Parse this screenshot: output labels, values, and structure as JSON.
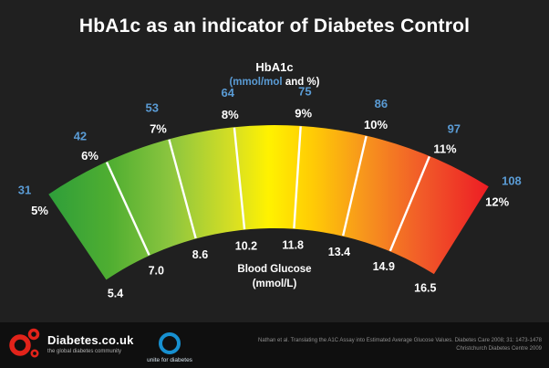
{
  "title": "HbA1c as an indicator of Diabetes Control",
  "gauge": {
    "heading": "HbA1c",
    "sub_blue": "(mmol/mol",
    "sub_white": "and %)",
    "center_line1": "Blood Glucose",
    "center_line2": "(mmol/L)"
  },
  "chart_data": {
    "type": "gauge",
    "title": "HbA1c as an indicator of Diabetes Control",
    "outer_scale_label": "HbA1c (mmol/mol and %)",
    "inner_scale_label": "Blood Glucose (mmol/L)",
    "ticks": [
      {
        "mmol_mol": "31",
        "percent": "5%",
        "glucose": "5.4"
      },
      {
        "mmol_mol": "42",
        "percent": "6%",
        "glucose": "7.0"
      },
      {
        "mmol_mol": "53",
        "percent": "7%",
        "glucose": "8.6"
      },
      {
        "mmol_mol": "64",
        "percent": "8%",
        "glucose": "10.2"
      },
      {
        "mmol_mol": "75",
        "percent": "9%",
        "glucose": "11.8"
      },
      {
        "mmol_mol": "86",
        "percent": "10%",
        "glucose": "13.4"
      },
      {
        "mmol_mol": "97",
        "percent": "11%",
        "glucose": "14.9"
      },
      {
        "mmol_mol": "108",
        "percent": "12%",
        "glucose": "16.5"
      }
    ],
    "gradient": [
      {
        "offset": "0%",
        "color": "#2e9e3a"
      },
      {
        "offset": "14%",
        "color": "#4fae31"
      },
      {
        "offset": "28%",
        "color": "#8dc63f"
      },
      {
        "offset": "42%",
        "color": "#d7df23"
      },
      {
        "offset": "50%",
        "color": "#fff200"
      },
      {
        "offset": "60%",
        "color": "#ffcb05"
      },
      {
        "offset": "72%",
        "color": "#f7941d"
      },
      {
        "offset": "85%",
        "color": "#f15a29"
      },
      {
        "offset": "100%",
        "color": "#ed1c24"
      }
    ],
    "label_color_mmol": "#5a9bd4",
    "label_color_percent": "#ffffff",
    "label_color_glucose": "#ffffff"
  },
  "footer": {
    "brand": "Diabetes.co.uk",
    "tagline": "the global diabetes community",
    "unite_label": "unite for diabetes",
    "citation_line1": "Nathan et al. Translating the A1C Assay into Estimated Average Glucose Values. Diabetes Care 2008; 31: 1473-1478",
    "citation_line2": "Christchurch Diabetes Centre 2009"
  },
  "colors": {
    "background": "#202020",
    "footer_background": "#0f0f0f",
    "accent_blue": "#5a9bd4",
    "tick_line_white": "#ffffff",
    "brand_red": "#e2231a",
    "unite_blue": "#1790d0"
  }
}
